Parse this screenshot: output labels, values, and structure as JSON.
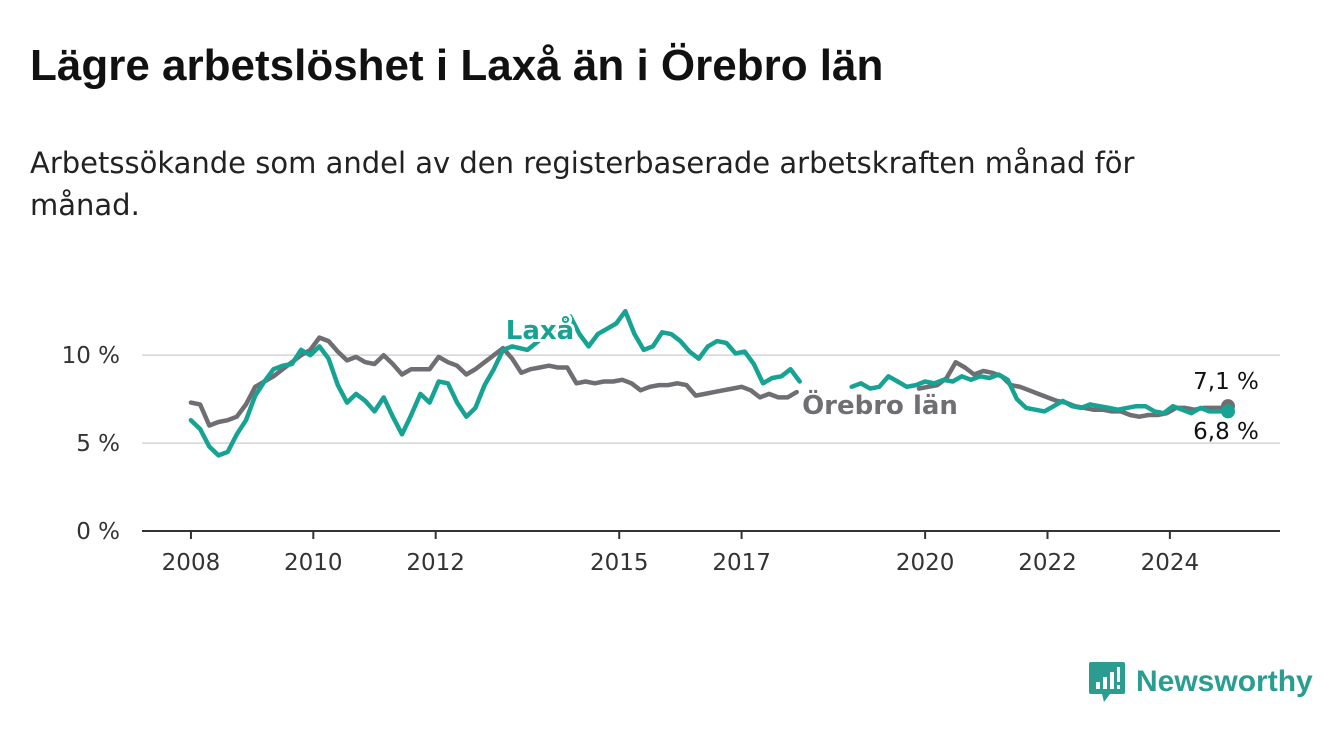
{
  "title": "Lägre arbetslöshet i Laxå än i Örebro län",
  "subtitle": "Arbetssökande som andel av den registerbaserade arbetskraften månad för månad.",
  "brand": {
    "name": "Newsworthy",
    "icon": "newsworthy-logo-icon",
    "color": "#2a9d90"
  },
  "chart_data": {
    "type": "line",
    "x_ticks": [
      "2008",
      "2010",
      "2012",
      "2015",
      "2017",
      "2020",
      "2022",
      "2024"
    ],
    "x_tick_values": [
      2008.0,
      2010.0,
      2012.0,
      2015.0,
      2017.0,
      2020.0,
      2022.0,
      2024.0
    ],
    "y_ticks": [
      "0 %",
      "5 %",
      "10 %"
    ],
    "y_tick_values": [
      0,
      5,
      10
    ],
    "xlim": [
      2007.2,
      2025.8
    ],
    "ylim": [
      0,
      12
    ],
    "grid": true,
    "gap": [
      2018.2,
      2018.8
    ],
    "series": [
      {
        "name": "Laxå",
        "color": "#16a394",
        "end_label": "6,8 %",
        "points": [
          [
            2008.0,
            6.3
          ],
          [
            2008.15,
            5.8
          ],
          [
            2008.3,
            4.8
          ],
          [
            2008.45,
            4.3
          ],
          [
            2008.6,
            4.5
          ],
          [
            2008.75,
            5.5
          ],
          [
            2008.9,
            6.3
          ],
          [
            2009.05,
            7.7
          ],
          [
            2009.2,
            8.5
          ],
          [
            2009.35,
            9.2
          ],
          [
            2009.5,
            9.4
          ],
          [
            2009.65,
            9.5
          ],
          [
            2009.8,
            10.3
          ],
          [
            2009.95,
            10.0
          ],
          [
            2010.1,
            10.5
          ],
          [
            2010.25,
            9.8
          ],
          [
            2010.4,
            8.3
          ],
          [
            2010.55,
            7.3
          ],
          [
            2010.7,
            7.8
          ],
          [
            2010.85,
            7.4
          ],
          [
            2011.0,
            6.8
          ],
          [
            2011.15,
            7.6
          ],
          [
            2011.3,
            6.5
          ],
          [
            2011.45,
            5.5
          ],
          [
            2011.6,
            6.6
          ],
          [
            2011.75,
            7.8
          ],
          [
            2011.9,
            7.3
          ],
          [
            2012.05,
            8.5
          ],
          [
            2012.2,
            8.4
          ],
          [
            2012.35,
            7.3
          ],
          [
            2012.5,
            6.5
          ],
          [
            2012.65,
            7.0
          ],
          [
            2012.8,
            8.3
          ],
          [
            2012.95,
            9.2
          ],
          [
            2013.1,
            10.3
          ],
          [
            2013.25,
            10.5
          ],
          [
            2013.5,
            10.3
          ],
          [
            2013.75,
            11.0
          ],
          [
            2014.0,
            11.5
          ],
          [
            2014.2,
            12.2
          ],
          [
            2014.35,
            11.2
          ],
          [
            2014.5,
            10.5
          ],
          [
            2014.65,
            11.2
          ],
          [
            2014.8,
            11.5
          ],
          [
            2014.95,
            11.8
          ],
          [
            2015.1,
            12.5
          ],
          [
            2015.25,
            11.2
          ],
          [
            2015.4,
            10.3
          ],
          [
            2015.55,
            10.5
          ],
          [
            2015.7,
            11.3
          ],
          [
            2015.85,
            11.2
          ],
          [
            2016.0,
            10.8
          ],
          [
            2016.15,
            10.2
          ],
          [
            2016.3,
            9.8
          ],
          [
            2016.45,
            10.5
          ],
          [
            2016.6,
            10.8
          ],
          [
            2016.75,
            10.7
          ],
          [
            2016.9,
            10.1
          ],
          [
            2017.05,
            10.2
          ],
          [
            2017.2,
            9.5
          ],
          [
            2017.35,
            8.4
          ],
          [
            2017.5,
            8.7
          ],
          [
            2017.65,
            8.8
          ],
          [
            2017.8,
            9.2
          ],
          [
            2017.95,
            8.5
          ],
          [
            2018.8,
            8.2
          ],
          [
            2018.95,
            8.4
          ],
          [
            2019.1,
            8.1
          ],
          [
            2019.25,
            8.2
          ],
          [
            2019.4,
            8.8
          ],
          [
            2019.55,
            8.5
          ],
          [
            2019.7,
            8.2
          ],
          [
            2019.85,
            8.3
          ],
          [
            2020.0,
            8.5
          ],
          [
            2020.15,
            8.4
          ],
          [
            2020.3,
            8.6
          ],
          [
            2020.45,
            8.5
          ],
          [
            2020.6,
            8.8
          ],
          [
            2020.75,
            8.6
          ],
          [
            2020.9,
            8.8
          ],
          [
            2021.05,
            8.7
          ],
          [
            2021.2,
            8.9
          ],
          [
            2021.35,
            8.6
          ],
          [
            2021.5,
            7.5
          ],
          [
            2021.65,
            7.0
          ],
          [
            2021.8,
            6.9
          ],
          [
            2021.95,
            6.8
          ],
          [
            2022.1,
            7.1
          ],
          [
            2022.25,
            7.4
          ],
          [
            2022.4,
            7.1
          ],
          [
            2022.55,
            7.0
          ],
          [
            2022.7,
            7.2
          ],
          [
            2022.85,
            7.1
          ],
          [
            2023.0,
            7.0
          ],
          [
            2023.15,
            6.9
          ],
          [
            2023.3,
            7.0
          ],
          [
            2023.45,
            7.1
          ],
          [
            2023.6,
            7.1
          ],
          [
            2023.75,
            6.8
          ],
          [
            2023.9,
            6.7
          ],
          [
            2024.05,
            7.1
          ],
          [
            2024.2,
            6.9
          ],
          [
            2024.35,
            6.7
          ],
          [
            2024.5,
            7.0
          ],
          [
            2024.65,
            6.8
          ],
          [
            2024.8,
            6.8
          ],
          [
            2024.95,
            6.8
          ]
        ]
      },
      {
        "name": "Örebro län",
        "color": "#6f6e73",
        "end_label": "7,1 %",
        "points": [
          [
            2008.0,
            7.3
          ],
          [
            2008.15,
            7.2
          ],
          [
            2008.3,
            6.0
          ],
          [
            2008.45,
            6.2
          ],
          [
            2008.6,
            6.3
          ],
          [
            2008.75,
            6.5
          ],
          [
            2008.9,
            7.2
          ],
          [
            2009.05,
            8.2
          ],
          [
            2009.2,
            8.5
          ],
          [
            2009.35,
            8.8
          ],
          [
            2009.5,
            9.2
          ],
          [
            2009.65,
            9.6
          ],
          [
            2009.8,
            10.0
          ],
          [
            2009.95,
            10.3
          ],
          [
            2010.1,
            11.0
          ],
          [
            2010.25,
            10.8
          ],
          [
            2010.4,
            10.2
          ],
          [
            2010.55,
            9.7
          ],
          [
            2010.7,
            9.9
          ],
          [
            2010.85,
            9.6
          ],
          [
            2011.0,
            9.5
          ],
          [
            2011.15,
            10.0
          ],
          [
            2011.3,
            9.5
          ],
          [
            2011.45,
            8.9
          ],
          [
            2011.6,
            9.2
          ],
          [
            2011.75,
            9.2
          ],
          [
            2011.9,
            9.2
          ],
          [
            2012.05,
            9.9
          ],
          [
            2012.2,
            9.6
          ],
          [
            2012.35,
            9.4
          ],
          [
            2012.5,
            8.9
          ],
          [
            2012.65,
            9.2
          ],
          [
            2012.8,
            9.6
          ],
          [
            2012.95,
            10.0
          ],
          [
            2013.1,
            10.4
          ],
          [
            2013.25,
            9.8
          ],
          [
            2013.4,
            9.0
          ],
          [
            2013.55,
            9.2
          ],
          [
            2013.7,
            9.3
          ],
          [
            2013.85,
            9.4
          ],
          [
            2014.0,
            9.3
          ],
          [
            2014.15,
            9.3
          ],
          [
            2014.3,
            8.4
          ],
          [
            2014.45,
            8.5
          ],
          [
            2014.6,
            8.4
          ],
          [
            2014.75,
            8.5
          ],
          [
            2014.9,
            8.5
          ],
          [
            2015.05,
            8.6
          ],
          [
            2015.2,
            8.4
          ],
          [
            2015.35,
            8.0
          ],
          [
            2015.5,
            8.2
          ],
          [
            2015.65,
            8.3
          ],
          [
            2015.8,
            8.3
          ],
          [
            2015.95,
            8.4
          ],
          [
            2016.1,
            8.3
          ],
          [
            2016.25,
            7.7
          ],
          [
            2016.4,
            7.8
          ],
          [
            2016.55,
            7.9
          ],
          [
            2016.7,
            8.0
          ],
          [
            2016.85,
            8.1
          ],
          [
            2017.0,
            8.2
          ],
          [
            2017.15,
            8.0
          ],
          [
            2017.3,
            7.6
          ],
          [
            2017.45,
            7.8
          ],
          [
            2017.6,
            7.6
          ],
          [
            2017.75,
            7.6
          ],
          [
            2017.9,
            7.9
          ],
          [
            2019.9,
            8.1
          ],
          [
            2020.05,
            8.2
          ],
          [
            2020.2,
            8.3
          ],
          [
            2020.35,
            8.7
          ],
          [
            2020.5,
            9.6
          ],
          [
            2020.65,
            9.3
          ],
          [
            2020.8,
            8.9
          ],
          [
            2020.95,
            9.1
          ],
          [
            2021.1,
            9.0
          ],
          [
            2021.25,
            8.8
          ],
          [
            2021.4,
            8.3
          ],
          [
            2021.55,
            8.2
          ],
          [
            2021.7,
            8.0
          ],
          [
            2021.85,
            7.8
          ],
          [
            2022.0,
            7.6
          ],
          [
            2022.15,
            7.4
          ],
          [
            2022.3,
            7.3
          ],
          [
            2022.45,
            7.1
          ],
          [
            2022.6,
            7.0
          ],
          [
            2022.75,
            6.9
          ],
          [
            2022.9,
            6.9
          ],
          [
            2023.05,
            6.8
          ],
          [
            2023.2,
            6.8
          ],
          [
            2023.35,
            6.6
          ],
          [
            2023.5,
            6.5
          ],
          [
            2023.65,
            6.6
          ],
          [
            2023.8,
            6.6
          ],
          [
            2023.95,
            6.7
          ],
          [
            2024.1,
            7.0
          ],
          [
            2024.25,
            7.0
          ],
          [
            2024.4,
            6.9
          ],
          [
            2024.55,
            7.0
          ],
          [
            2024.7,
            7.0
          ],
          [
            2024.85,
            7.0
          ],
          [
            2024.95,
            7.1
          ]
        ]
      }
    ]
  }
}
